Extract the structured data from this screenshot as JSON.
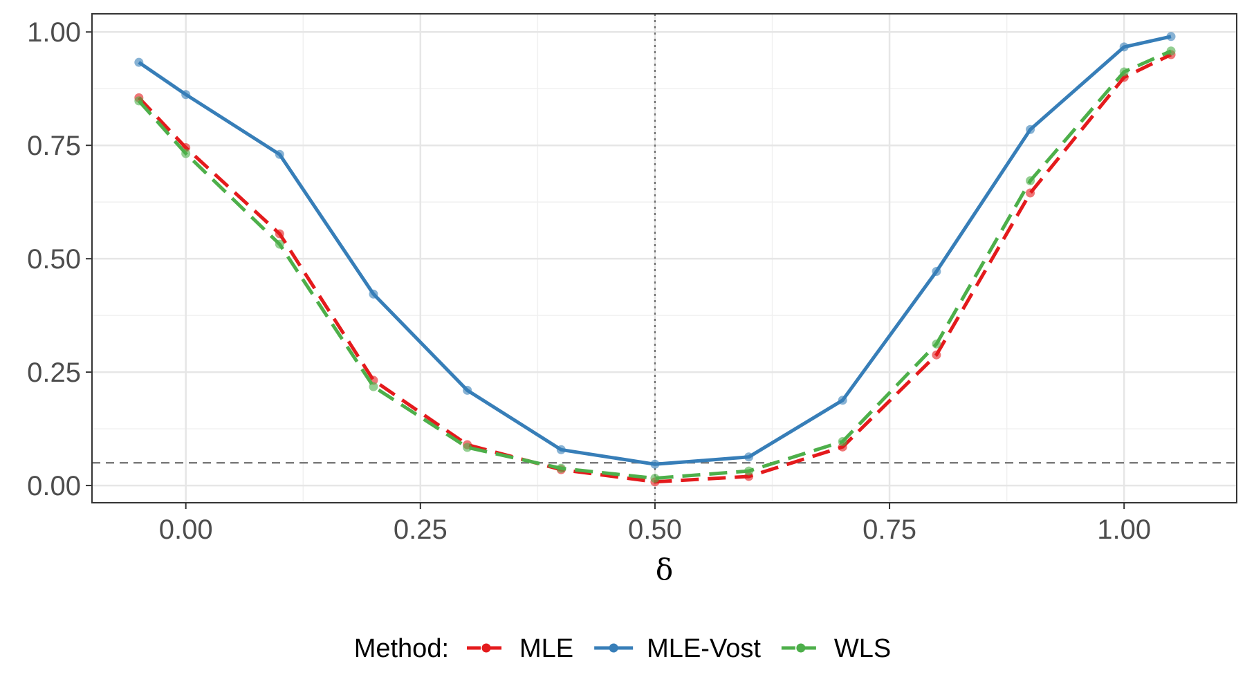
{
  "chart_data": {
    "type": "line",
    "title": "",
    "xlabel": "δ",
    "ylabel": "",
    "xlim": [
      -0.1,
      1.12
    ],
    "ylim": [
      -0.038,
      1.04
    ],
    "x_ticks": [
      0.0,
      0.25,
      0.5,
      0.75,
      1.0
    ],
    "x_tick_labels": [
      "0.00",
      "0.25",
      "0.50",
      "0.75",
      "1.00"
    ],
    "y_ticks": [
      0.0,
      0.25,
      0.5,
      0.75,
      1.0
    ],
    "y_tick_labels": [
      "0.00",
      "0.25",
      "0.50",
      "0.75",
      "1.00"
    ],
    "grid": true,
    "reference_lines": [
      {
        "orientation": "horizontal",
        "value": 0.05,
        "style": "dashed",
        "color": "#6e6e6e"
      },
      {
        "orientation": "vertical",
        "value": 0.5,
        "style": "dotted",
        "color": "#6e6e6e"
      }
    ],
    "legend": {
      "title": "Method:",
      "position": "bottom"
    },
    "x": [
      -0.05,
      0.0,
      0.1,
      0.2,
      0.3,
      0.4,
      0.5,
      0.6,
      0.7,
      0.8,
      0.9,
      1.0,
      1.05
    ],
    "series": [
      {
        "name": "MLE",
        "color": "#e41a1c",
        "line_style": "dashed",
        "values": [
          0.855,
          0.745,
          0.555,
          0.232,
          0.09,
          0.035,
          0.008,
          0.02,
          0.085,
          0.288,
          0.645,
          0.9,
          0.95
        ]
      },
      {
        "name": "MLE-Vost",
        "color": "#377eb8",
        "line_style": "solid",
        "values": [
          0.933,
          0.862,
          0.73,
          0.422,
          0.21,
          0.079,
          0.047,
          0.063,
          0.188,
          0.472,
          0.785,
          0.967,
          0.99
        ]
      },
      {
        "name": "WLS",
        "color": "#4daf4a",
        "line_style": "dashed",
        "values": [
          0.848,
          0.732,
          0.532,
          0.218,
          0.084,
          0.038,
          0.016,
          0.032,
          0.097,
          0.312,
          0.672,
          0.912,
          0.958
        ]
      }
    ]
  }
}
